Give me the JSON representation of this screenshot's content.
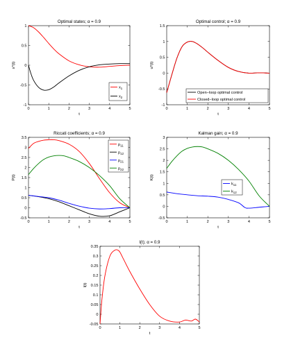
{
  "chart_data": [
    {
      "id": "optimal-states",
      "type": "line",
      "title": "Optimal states; α = 0.9",
      "xlabel": "t",
      "ylabel": "x*(t)",
      "xlim": [
        0,
        5
      ],
      "ylim": [
        -1,
        1
      ],
      "xticks": [
        "0",
        "1",
        "2",
        "3",
        "4",
        "5"
      ],
      "yticks": [
        "-1",
        "-0.5",
        "0",
        "0.5",
        "1"
      ],
      "grid": false,
      "legend_position": "bottom-right",
      "legend_labels": [
        "x1",
        "x2"
      ],
      "series": [
        {
          "name": "x1",
          "color": "#ff0000",
          "x": [
            0,
            0.25,
            0.5,
            0.75,
            1,
            1.25,
            1.5,
            2,
            2.5,
            3,
            3.5,
            4,
            4.5,
            5
          ],
          "y": [
            1,
            0.95,
            0.84,
            0.7,
            0.55,
            0.41,
            0.29,
            0.11,
            0.01,
            -0.04,
            -0.05,
            -0.03,
            -0.01,
            0
          ]
        },
        {
          "name": "x2",
          "color": "#000000",
          "x": [
            0,
            0.1,
            0.25,
            0.5,
            0.75,
            1,
            1.25,
            1.5,
            2,
            2.5,
            3,
            3.5,
            4,
            4.5,
            5
          ],
          "y": [
            0,
            -0.18,
            -0.38,
            -0.56,
            -0.63,
            -0.62,
            -0.55,
            -0.45,
            -0.27,
            -0.13,
            -0.04,
            0.01,
            0.03,
            0.04,
            0.04
          ]
        }
      ]
    },
    {
      "id": "optimal-control",
      "type": "line",
      "title": "Optimal control; α = 0.9",
      "xlabel": "t",
      "ylabel": "u*(t)",
      "xlim": [
        0,
        5
      ],
      "ylim": [
        -1,
        1.5
      ],
      "xticks": [
        "0",
        "1",
        "2",
        "3",
        "4",
        "5"
      ],
      "yticks": [
        "-1",
        "-0.5",
        "0",
        "0.5",
        "1",
        "1.5"
      ],
      "grid": false,
      "legend_position": "bottom-right",
      "legend_labels": [
        "Open−loop optimal control",
        "Closed−loop optimal control"
      ],
      "series": [
        {
          "name": "Open−loop optimal control",
          "color": "#000000",
          "x": [
            0,
            0.25,
            0.5,
            0.75,
            1,
            1.25,
            1.5,
            1.75,
            2,
            2.5,
            3,
            3.5,
            4,
            4.5,
            5
          ],
          "y": [
            -0.62,
            -0.05,
            0.48,
            0.84,
            0.98,
            1.0,
            0.92,
            0.8,
            0.66,
            0.4,
            0.18,
            0.05,
            0.0,
            0.01,
            0.0
          ]
        },
        {
          "name": "Closed−loop optimal control",
          "color": "#ff0000",
          "x": [
            0,
            0.25,
            0.5,
            0.75,
            1,
            1.25,
            1.5,
            1.75,
            2,
            2.5,
            3,
            3.5,
            4,
            4.5,
            5
          ],
          "y": [
            -0.62,
            -0.05,
            0.48,
            0.84,
            0.98,
            1.0,
            0.92,
            0.8,
            0.66,
            0.4,
            0.18,
            0.05,
            0.0,
            0.01,
            0.0
          ]
        }
      ]
    },
    {
      "id": "riccati-coefficients",
      "type": "line",
      "title": "Riccati coefficients; α = 0.9",
      "xlabel": "t",
      "ylabel": "P(t)",
      "xlim": [
        0,
        5
      ],
      "ylim": [
        -0.5,
        3.5
      ],
      "xticks": [
        "0",
        "1",
        "2",
        "3",
        "4",
        "5"
      ],
      "yticks": [
        "-0.5",
        "0",
        "0.5",
        "1",
        "1.5",
        "2",
        "2.5",
        "3",
        "3.5"
      ],
      "grid": false,
      "legend_position": "top-right",
      "legend_labels": [
        "p11",
        "p12",
        "p21",
        "p22"
      ],
      "series": [
        {
          "name": "p11",
          "color": "#ff0000",
          "x": [
            0,
            0.25,
            0.5,
            0.75,
            1,
            1.25,
            1.5,
            2,
            2.5,
            3,
            3.5,
            4,
            4.5,
            5
          ],
          "y": [
            2.95,
            3.2,
            3.3,
            3.36,
            3.38,
            3.38,
            3.34,
            3.16,
            2.8,
            2.2,
            1.45,
            0.75,
            0.25,
            0.0
          ]
        },
        {
          "name": "p12",
          "color": "#000000",
          "x": [
            0,
            0.5,
            1,
            1.5,
            2,
            2.5,
            3,
            3.5,
            4,
            4.5,
            5
          ],
          "y": [
            0.62,
            0.55,
            0.45,
            0.3,
            0.1,
            -0.1,
            -0.3,
            -0.42,
            -0.4,
            -0.2,
            0.0
          ]
        },
        {
          "name": "p21",
          "color": "#0000ff",
          "x": [
            0,
            0.5,
            1,
            1.5,
            2,
            2.5,
            3,
            3.5,
            4,
            4.5,
            5
          ],
          "y": [
            0.62,
            0.56,
            0.5,
            0.38,
            0.22,
            0.08,
            -0.02,
            -0.06,
            -0.04,
            0.0,
            0.0
          ]
        },
        {
          "name": "p22",
          "color": "#008000",
          "x": [
            0,
            0.25,
            0.5,
            0.75,
            1,
            1.25,
            1.5,
            1.75,
            2,
            2.5,
            3,
            3.5,
            4,
            4.5,
            5
          ],
          "y": [
            1.65,
            1.95,
            2.2,
            2.4,
            2.52,
            2.58,
            2.6,
            2.58,
            2.5,
            2.3,
            2.0,
            1.6,
            1.1,
            0.45,
            0.0
          ]
        }
      ]
    },
    {
      "id": "kalman-gain",
      "type": "line",
      "title": "Kalman gain; α = 0.9",
      "xlabel": "t",
      "ylabel": "K(t)",
      "xlim": [
        0,
        5
      ],
      "ylim": [
        -0.5,
        3
      ],
      "xticks": [
        "0",
        "1",
        "2",
        "3",
        "4",
        "5"
      ],
      "yticks": [
        "-0.5",
        "0",
        "0.5",
        "1",
        "1.5",
        "2",
        "2.5",
        "3"
      ],
      "grid": false,
      "legend_position": "bottom-right",
      "legend_labels": [
        "k11",
        "k12"
      ],
      "series": [
        {
          "name": "k11",
          "color": "#0000ff",
          "x": [
            0,
            0.5,
            1,
            1.5,
            2,
            2.5,
            3,
            3.5,
            3.8,
            4,
            4.5,
            5
          ],
          "y": [
            0.62,
            0.55,
            0.5,
            0.46,
            0.44,
            0.4,
            0.3,
            0.15,
            -0.05,
            -0.08,
            -0.04,
            0.0
          ]
        },
        {
          "name": "k12",
          "color": "#008000",
          "x": [
            0,
            0.25,
            0.5,
            0.75,
            1,
            1.25,
            1.5,
            1.75,
            2,
            2.5,
            3,
            3.5,
            4,
            4.5,
            5
          ],
          "y": [
            1.65,
            1.95,
            2.2,
            2.4,
            2.52,
            2.58,
            2.6,
            2.58,
            2.5,
            2.3,
            2.0,
            1.6,
            1.1,
            0.45,
            0.0
          ]
        }
      ]
    },
    {
      "id": "l-function",
      "type": "line",
      "title": "l(t); α = 0.9",
      "xlabel": "t",
      "ylabel": "l(t)",
      "xlim": [
        0,
        5
      ],
      "ylim": [
        -0.05,
        0.35
      ],
      "xticks": [
        "0",
        "1",
        "2",
        "3",
        "4",
        "5"
      ],
      "yticks": [
        "-0.05",
        "0",
        "0.05",
        "0.1",
        "0.15",
        "0.2",
        "0.25",
        "0.3",
        "0.35"
      ],
      "grid": false,
      "series": [
        {
          "name": "l",
          "color": "#ff0000",
          "x": [
            0,
            0.1,
            0.25,
            0.5,
            0.75,
            0.9,
            1,
            1.2,
            1.5,
            2,
            2.5,
            3,
            3.5,
            4,
            4.3,
            4.6,
            4.8,
            5
          ],
          "y": [
            -0.05,
            0.08,
            0.2,
            0.3,
            0.33,
            0.33,
            0.32,
            0.28,
            0.22,
            0.13,
            0.05,
            -0.01,
            -0.035,
            -0.04,
            -0.03,
            -0.035,
            -0.025,
            -0.04
          ]
        }
      ]
    }
  ]
}
